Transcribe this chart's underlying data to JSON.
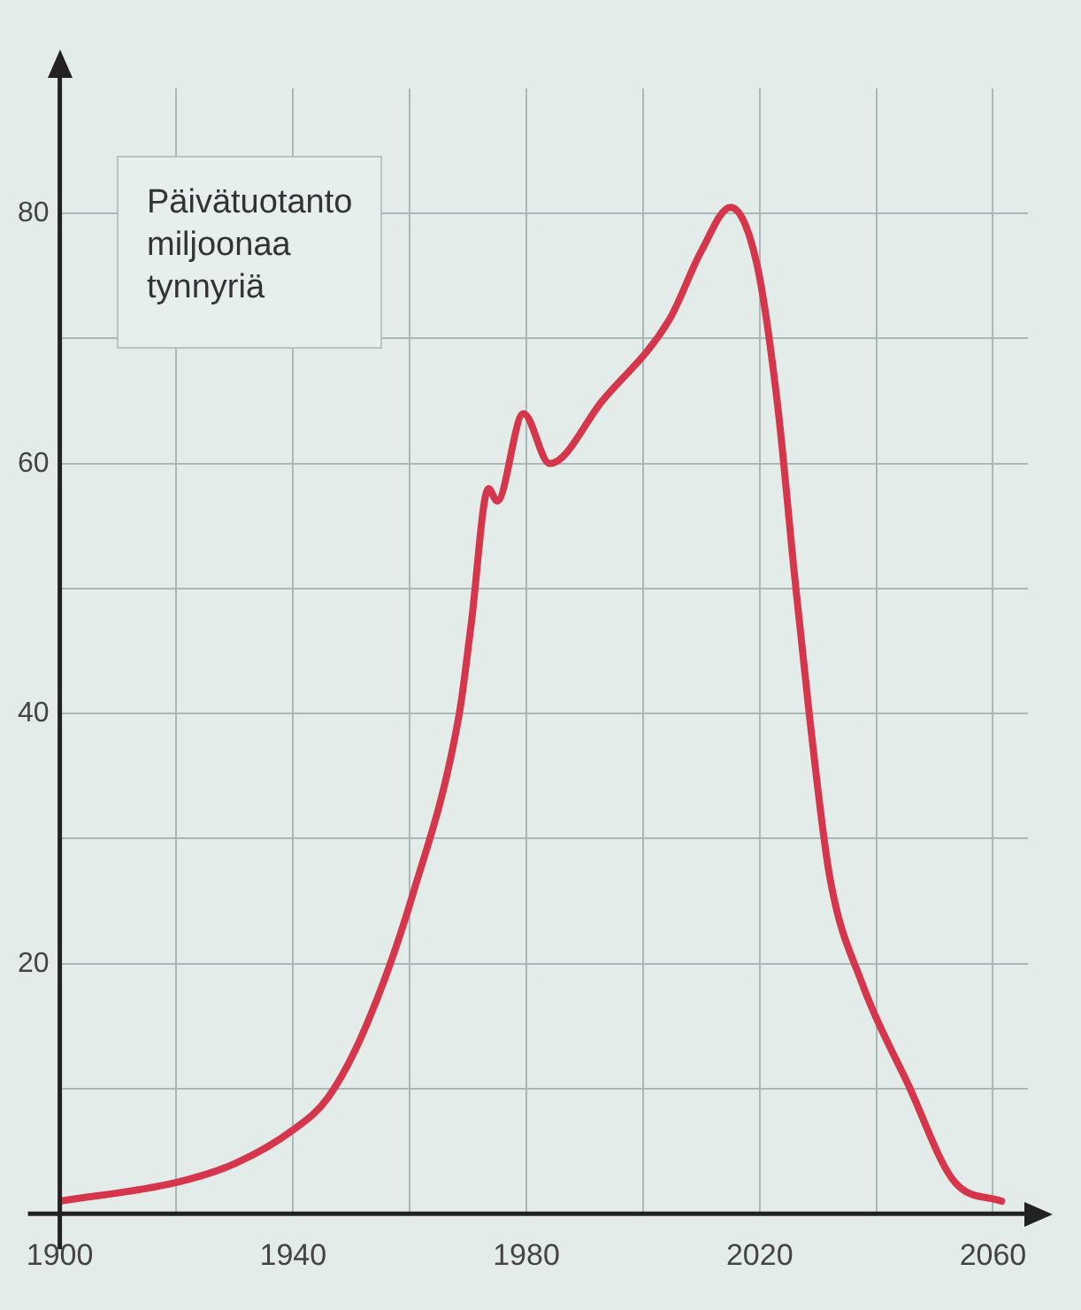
{
  "chart_data": {
    "type": "line",
    "ylabel": "Päivätuotanto miljoonaa tynnyriä",
    "x": [
      1900,
      1920,
      1930,
      1940,
      1946,
      1952.5,
      1960.5,
      1968.5,
      1970.5,
      1973.5,
      1975,
      1979.5,
      1984,
      1993,
      2004.5,
      2010,
      2015,
      2019.5,
      2023,
      2026,
      2028.5,
      2032,
      2037.5,
      2045.5,
      2053.5,
      2061.5
    ],
    "series": [
      {
        "color": "#d6364c",
        "values": [
          1,
          2.5,
          4,
          6.7,
          9.3,
          15,
          25.5,
          40,
          47,
          58,
          57,
          64,
          60,
          65,
          71.5,
          77,
          80.5,
          76,
          65,
          51,
          40,
          27,
          18.5,
          10.3,
          2.5,
          1
        ]
      }
    ],
    "xlim": [
      1900,
      2066
    ],
    "ylim": [
      0,
      90
    ],
    "xticks": [
      1900,
      {
        "value": 1920,
        "label": null
      },
      1940,
      {
        "value": 1960,
        "label": null
      },
      1980,
      {
        "value": 2000,
        "label": null
      },
      2020,
      {
        "value": 2040,
        "label": null
      },
      2060
    ],
    "yticks": [
      {
        "value": 0,
        "label": null
      },
      {
        "value": 10,
        "label": null
      },
      20,
      {
        "value": 30,
        "label": null
      },
      40,
      {
        "value": 50,
        "label": null
      },
      60,
      {
        "value": 70,
        "label": null
      },
      80
    ],
    "grid": true,
    "marker": "none",
    "line_style": "solid"
  }
}
